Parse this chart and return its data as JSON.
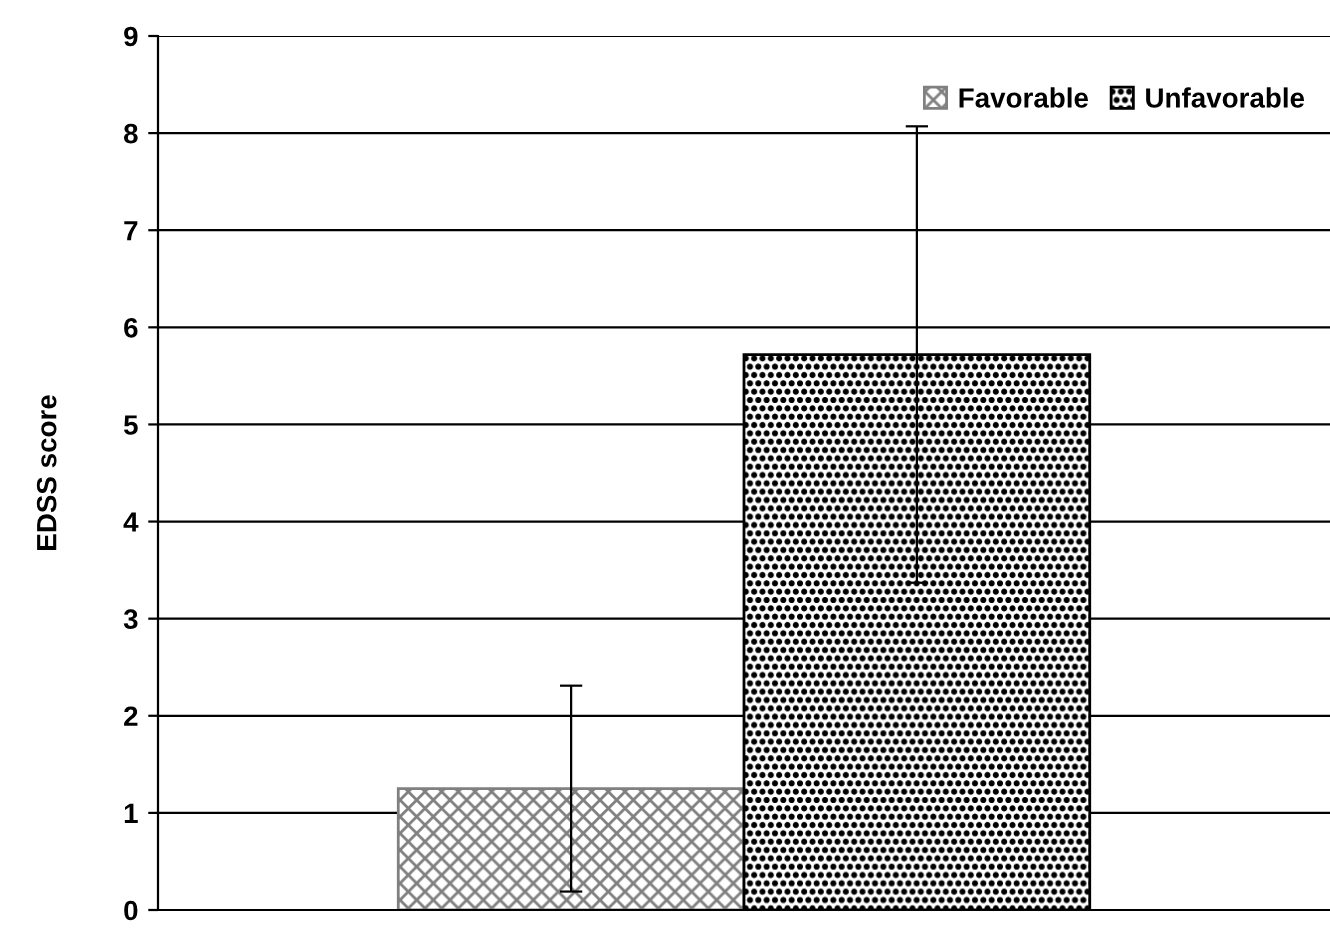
{
  "chart_data": {
    "type": "bar",
    "ylabel": "EDSS score",
    "categories": [
      null
    ],
    "series": [
      {
        "name": "Favorable",
        "color": "#808080",
        "values": [
          1.25
        ],
        "errors": [
          1.06
        ]
      },
      {
        "name": "Unfavorable",
        "color": "#000000",
        "values": [
          5.72
        ],
        "errors": [
          2.35
        ]
      }
    ],
    "ylim": [
      0,
      9
    ],
    "yticks": [
      0,
      1,
      2,
      3,
      4,
      5,
      6,
      7,
      8,
      9
    ],
    "grid": "y",
    "legend": "top right"
  }
}
